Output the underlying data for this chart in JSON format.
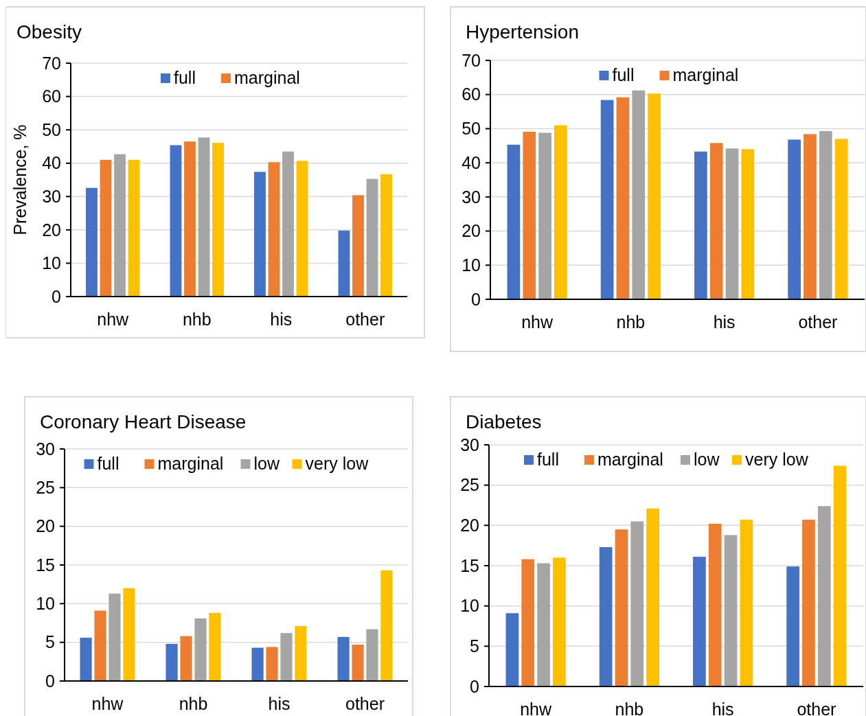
{
  "chart_data": [
    {
      "type": "bar",
      "title": "Obesity",
      "ylabel": "Prevalence, %",
      "categories": [
        "nhw",
        "nhb",
        "his",
        "other"
      ],
      "ylim": [
        0,
        70
      ],
      "yticks": [
        0,
        10,
        20,
        30,
        40,
        50,
        60,
        70
      ],
      "grid": "y",
      "legend": "top",
      "series": [
        {
          "name": "full",
          "color": "#4472c4",
          "values": [
            32.6,
            45.4,
            37.4,
            19.8
          ]
        },
        {
          "name": "marginal",
          "color": "#ed7d31",
          "values": [
            41.0,
            46.5,
            40.3,
            30.4
          ]
        },
        {
          "color": "#a5a5a5",
          "values": [
            42.7,
            47.7,
            43.5,
            35.3
          ]
        },
        {
          "color": "#ffc000",
          "values": [
            41.0,
            46.1,
            40.7,
            36.7
          ]
        }
      ]
    },
    {
      "type": "bar",
      "title": "Hypertension",
      "categories": [
        "nhw",
        "nhb",
        "his",
        "other"
      ],
      "ylim": [
        0,
        70
      ],
      "yticks": [
        0,
        10,
        20,
        30,
        40,
        50,
        60,
        70
      ],
      "grid": "y",
      "legend": "top",
      "series": [
        {
          "name": "full",
          "color": "#4472c4",
          "values": [
            45.3,
            58.4,
            43.3,
            46.8
          ]
        },
        {
          "name": "marginal",
          "color": "#ed7d31",
          "values": [
            49.1,
            59.2,
            45.8,
            48.4
          ]
        },
        {
          "color": "#a5a5a5",
          "values": [
            48.8,
            61.2,
            44.2,
            49.3
          ]
        },
        {
          "color": "#ffc000",
          "values": [
            51.0,
            60.3,
            44.0,
            47.0
          ]
        }
      ]
    },
    {
      "type": "bar",
      "title": "Coronary Heart Disease",
      "categories": [
        "nhw",
        "nhb",
        "his",
        "other"
      ],
      "ylim": [
        0,
        30
      ],
      "yticks": [
        0,
        5,
        10,
        15,
        20,
        25,
        30
      ],
      "grid": "y",
      "legend": "top",
      "series": [
        {
          "name": "full",
          "color": "#4472c4",
          "values": [
            5.6,
            4.8,
            4.3,
            5.7
          ]
        },
        {
          "name": "marginal",
          "color": "#ed7d31",
          "values": [
            9.1,
            5.8,
            4.4,
            4.7
          ]
        },
        {
          "name": "low",
          "color": "#a5a5a5",
          "values": [
            11.3,
            8.1,
            6.2,
            6.7
          ]
        },
        {
          "name": "very low",
          "color": "#ffc000",
          "values": [
            12.0,
            8.8,
            7.1,
            14.3
          ]
        }
      ]
    },
    {
      "type": "bar",
      "title": "Diabetes",
      "categories": [
        "nhw",
        "nhb",
        "his",
        "other"
      ],
      "ylim": [
        0,
        30
      ],
      "yticks": [
        0,
        5,
        10,
        15,
        20,
        25,
        30
      ],
      "grid": "y",
      "legend": "top",
      "series": [
        {
          "name": "full",
          "color": "#4472c4",
          "values": [
            9.1,
            17.3,
            16.1,
            14.9
          ]
        },
        {
          "name": "marginal",
          "color": "#ed7d31",
          "values": [
            15.8,
            19.5,
            20.2,
            20.7
          ]
        },
        {
          "name": "low",
          "color": "#a5a5a5",
          "values": [
            15.3,
            20.5,
            18.8,
            22.4
          ]
        },
        {
          "name": "very low",
          "color": "#ffc000",
          "values": [
            16.0,
            22.1,
            20.7,
            27.4
          ]
        }
      ]
    }
  ]
}
